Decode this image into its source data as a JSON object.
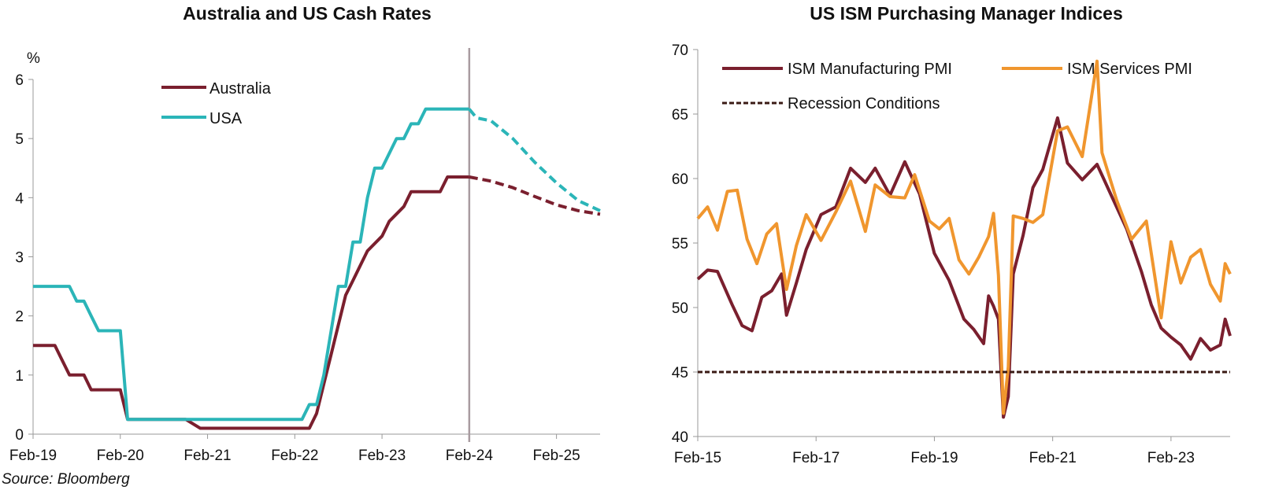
{
  "colors": {
    "australia": "#7a1f2e",
    "usa": "#2bb5b8",
    "manufacturing": "#7a1f2e",
    "services": "#f0962e",
    "recession": "#3a1a14",
    "divider": "#a89ba0",
    "axis": "#999999"
  },
  "source": "Source: Bloomberg",
  "chart_data": [
    {
      "type": "line",
      "title": "Australia and US Cash Rates",
      "ylabel": "%",
      "xlabel": "",
      "ylim": [
        0,
        6
      ],
      "yticks": [
        "0",
        "1",
        "2",
        "3",
        "4",
        "5",
        "6"
      ],
      "xticks": [
        "Feb-19",
        "Feb-20",
        "Feb-21",
        "Feb-22",
        "Feb-23",
        "Feb-24",
        "Feb-25"
      ],
      "xlim": [
        "Feb-19",
        "Aug-25"
      ],
      "forecast_divider": "Feb-24",
      "legend": {
        "position": "top-left",
        "entries": [
          "Australia",
          "USA"
        ]
      },
      "series": [
        {
          "name": "Australia",
          "style": "solid",
          "x": [
            "2019-02",
            "2019-05",
            "2019-06",
            "2019-07",
            "2019-09",
            "2019-10",
            "2019-11",
            "2020-02",
            "2020-03",
            "2020-11",
            "2021-01",
            "2022-04",
            "2022-05",
            "2022-06",
            "2022-07",
            "2022-08",
            "2022-09",
            "2022-10",
            "2022-11",
            "2022-12",
            "2023-02",
            "2023-03",
            "2023-05",
            "2023-06",
            "2023-08",
            "2023-10",
            "2023-11",
            "2024-02"
          ],
          "values": [
            1.5,
            1.5,
            1.25,
            1.0,
            1.0,
            0.75,
            0.75,
            0.75,
            0.25,
            0.25,
            0.1,
            0.1,
            0.35,
            0.85,
            1.35,
            1.85,
            2.35,
            2.6,
            2.85,
            3.1,
            3.35,
            3.6,
            3.85,
            4.1,
            4.1,
            4.1,
            4.35,
            4.35
          ]
        },
        {
          "name": "Australia",
          "style": "dashed",
          "x": [
            "2024-02",
            "2024-05",
            "2024-08",
            "2024-11",
            "2025-02",
            "2025-05",
            "2025-08"
          ],
          "values": [
            4.35,
            4.28,
            4.17,
            4.02,
            3.88,
            3.78,
            3.72
          ]
        },
        {
          "name": "USA",
          "style": "solid",
          "x": [
            "2019-02",
            "2019-07",
            "2019-08",
            "2019-09",
            "2019-10",
            "2019-11",
            "2020-02",
            "2020-03",
            "2022-03",
            "2022-04",
            "2022-05",
            "2022-06",
            "2022-07",
            "2022-08",
            "2022-09",
            "2022-10",
            "2022-11",
            "2022-12",
            "2023-01",
            "2023-02",
            "2023-03",
            "2023-04",
            "2023-05",
            "2023-06",
            "2023-07",
            "2023-08",
            "2024-02"
          ],
          "values": [
            2.5,
            2.5,
            2.25,
            2.25,
            2.0,
            1.75,
            1.75,
            0.25,
            0.25,
            0.5,
            0.5,
            1.0,
            1.75,
            2.5,
            2.5,
            3.25,
            3.25,
            4.0,
            4.5,
            4.5,
            4.75,
            5.0,
            5.0,
            5.25,
            5.25,
            5.5,
            5.5
          ]
        },
        {
          "name": "USA",
          "style": "dashed",
          "x": [
            "2024-02",
            "2024-03",
            "2024-05",
            "2024-08",
            "2024-11",
            "2025-02",
            "2025-05",
            "2025-08"
          ],
          "values": [
            5.5,
            5.35,
            5.3,
            5.0,
            4.6,
            4.25,
            3.95,
            3.78
          ]
        }
      ]
    },
    {
      "type": "line",
      "title": "US ISM Purchasing Manager Indices",
      "xlabel": "",
      "ylabel": "",
      "ylim": [
        40,
        70
      ],
      "yticks": [
        "40",
        "45",
        "50",
        "55",
        "60",
        "65",
        "70"
      ],
      "xticks": [
        "Feb-15",
        "Feb-17",
        "Feb-19",
        "Feb-21",
        "Feb-23"
      ],
      "xlim": [
        "Feb-15",
        "Feb-24"
      ],
      "legend": {
        "position": "top",
        "entries": [
          "ISM Manufacturing PMI",
          "ISM Services PMI",
          "Recession Conditions"
        ]
      },
      "series": [
        {
          "name": "ISM Manufacturing PMI",
          "x": [
            "2015-02",
            "2015-04",
            "2015-06",
            "2015-09",
            "2015-11",
            "2016-01",
            "2016-03",
            "2016-05",
            "2016-07",
            "2016-08",
            "2016-10",
            "2016-12",
            "2017-03",
            "2017-06",
            "2017-09",
            "2017-12",
            "2018-02",
            "2018-05",
            "2018-08",
            "2018-11",
            "2019-02",
            "2019-05",
            "2019-08",
            "2019-10",
            "2019-12",
            "2020-01",
            "2020-02",
            "2020-03",
            "2020-04",
            "2020-05",
            "2020-06",
            "2020-08",
            "2020-10",
            "2020-12",
            "2021-03",
            "2021-05",
            "2021-08",
            "2021-11",
            "2022-02",
            "2022-05",
            "2022-08",
            "2022-10",
            "2022-12",
            "2023-02",
            "2023-04",
            "2023-06",
            "2023-08",
            "2023-10",
            "2023-12",
            "2024-01",
            "2024-02"
          ],
          "values": [
            52.2,
            52.9,
            52.8,
            50.2,
            48.6,
            48.2,
            50.8,
            51.3,
            52.6,
            49.4,
            51.9,
            54.5,
            57.2,
            57.8,
            60.8,
            59.7,
            60.8,
            58.7,
            61.3,
            58.8,
            54.2,
            52.1,
            49.1,
            48.3,
            47.2,
            50.9,
            50.1,
            49.1,
            41.5,
            43.1,
            52.6,
            55.6,
            59.3,
            60.7,
            64.7,
            61.2,
            59.9,
            61.1,
            58.6,
            56.1,
            52.8,
            50.2,
            48.4,
            47.7,
            47.1,
            46.0,
            47.6,
            46.7,
            47.1,
            49.1,
            47.8
          ]
        },
        {
          "name": "ISM Services PMI",
          "x": [
            "2015-02",
            "2015-04",
            "2015-06",
            "2015-08",
            "2015-10",
            "2015-12",
            "2016-02",
            "2016-04",
            "2016-06",
            "2016-08",
            "2016-10",
            "2016-12",
            "2017-03",
            "2017-06",
            "2017-09",
            "2017-12",
            "2018-02",
            "2018-05",
            "2018-08",
            "2018-10",
            "2019-01",
            "2019-03",
            "2019-05",
            "2019-07",
            "2019-09",
            "2019-11",
            "2020-01",
            "2020-02",
            "2020-03",
            "2020-04",
            "2020-05",
            "2020-06",
            "2020-08",
            "2020-10",
            "2020-12",
            "2021-03",
            "2021-05",
            "2021-08",
            "2021-11",
            "2021-12",
            "2022-03",
            "2022-06",
            "2022-09",
            "2022-12",
            "2023-02",
            "2023-04",
            "2023-06",
            "2023-08",
            "2023-10",
            "2023-12",
            "2024-01",
            "2024-02"
          ],
          "values": [
            56.9,
            57.8,
            56.0,
            59.0,
            59.1,
            55.3,
            53.4,
            55.7,
            56.5,
            51.4,
            54.8,
            57.2,
            55.2,
            57.4,
            59.8,
            55.9,
            59.5,
            58.6,
            58.5,
            60.3,
            56.7,
            56.1,
            56.9,
            53.7,
            52.6,
            53.9,
            55.5,
            57.3,
            52.5,
            41.8,
            45.4,
            57.1,
            56.9,
            56.6,
            57.2,
            63.7,
            64.0,
            61.7,
            69.1,
            62.0,
            58.3,
            55.3,
            56.7,
            49.2,
            55.1,
            51.9,
            53.9,
            54.5,
            51.8,
            50.5,
            53.4,
            52.6
          ]
        },
        {
          "name": "Recession Conditions",
          "style": "dashed",
          "x": [
            "2015-02",
            "2024-02"
          ],
          "values": [
            45,
            45
          ]
        }
      ]
    }
  ]
}
